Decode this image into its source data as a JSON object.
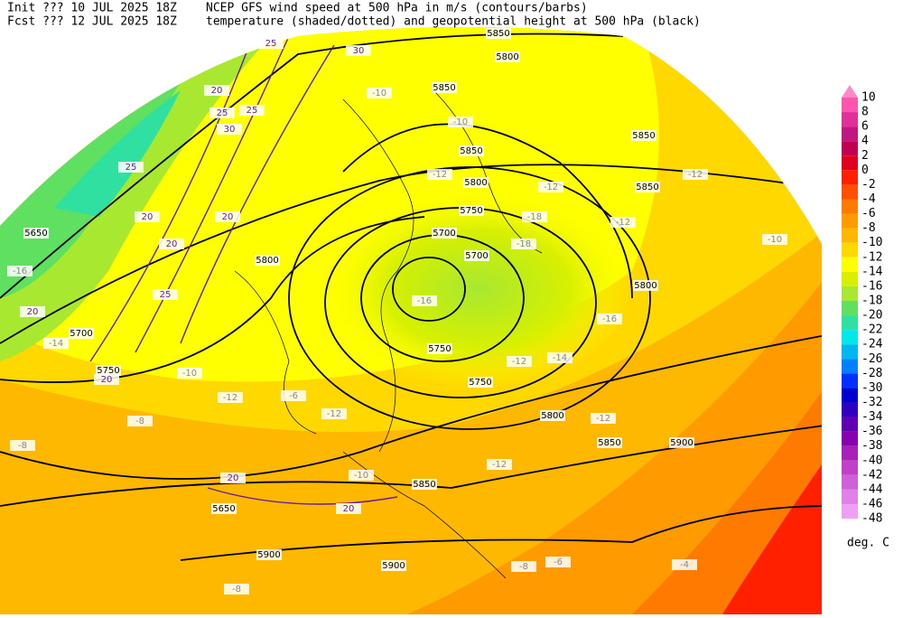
{
  "header": {
    "init": "Init  ??? 10 JUL 2025 18Z",
    "fcst": "Fcst ??? 12 JUL 2025 18Z",
    "title1": "NCEP GFS wind speed at 500 hPa in m/s (contours/barbs)",
    "title2": "temperature (shaded/dotted) and geopotential height at 500 hPa (black)"
  },
  "colorbar": {
    "levels": [
      10,
      8,
      6,
      4,
      2,
      0,
      -2,
      -4,
      -6,
      -8,
      -10,
      -12,
      -14,
      -16,
      -18,
      -20,
      -22,
      -24,
      -26,
      -28,
      -30,
      -32,
      -34,
      -36,
      -38,
      -40,
      -42,
      -44,
      -46,
      -48
    ],
    "colors": [
      "#ff88c8",
      "#ff55b0",
      "#e0309a",
      "#c01880",
      "#c00050",
      "#e00020",
      "#ff2000",
      "#ff5000",
      "#ff7a00",
      "#ff9a00",
      "#ffb800",
      "#ffd800",
      "#ffff00",
      "#d8f000",
      "#a8e830",
      "#60e060",
      "#30e0a0",
      "#00e8e8",
      "#00b8f0",
      "#0080ff",
      "#0030ff",
      "#0000d0",
      "#3000c0",
      "#6000b0",
      "#8800b0",
      "#a820b8",
      "#c040c8",
      "#d060d8",
      "#e080e8",
      "#f0a0f0"
    ],
    "unit": "deg. C"
  },
  "map": {
    "height_labels": [
      "5850",
      "5800",
      "5700",
      "5750",
      "5850",
      "5800",
      "5750",
      "5700",
      "5850",
      "5750",
      "5800",
      "5850",
      "5900",
      "5850",
      "5650",
      "5900",
      "5900",
      "5850",
      "5800",
      "5850",
      "5800",
      "5750",
      "5700",
      "5650"
    ],
    "temperature_labels": [
      "-10",
      "-10",
      "-12",
      "-12",
      "-12",
      "-12",
      "-16",
      "-18",
      "-16",
      "-14",
      "-12",
      "-12",
      "-10",
      "-8",
      "-6",
      "-8",
      "-10",
      "-12",
      "-12",
      "-12",
      "-10",
      "-18",
      "-14",
      "-16",
      "-8",
      "-6",
      "-4",
      "-8"
    ],
    "wind_labels": [
      "25",
      "30",
      "20",
      "25",
      "25",
      "30",
      "25",
      "20",
      "20",
      "20",
      "25",
      "20",
      "20",
      "20",
      "20"
    ]
  }
}
